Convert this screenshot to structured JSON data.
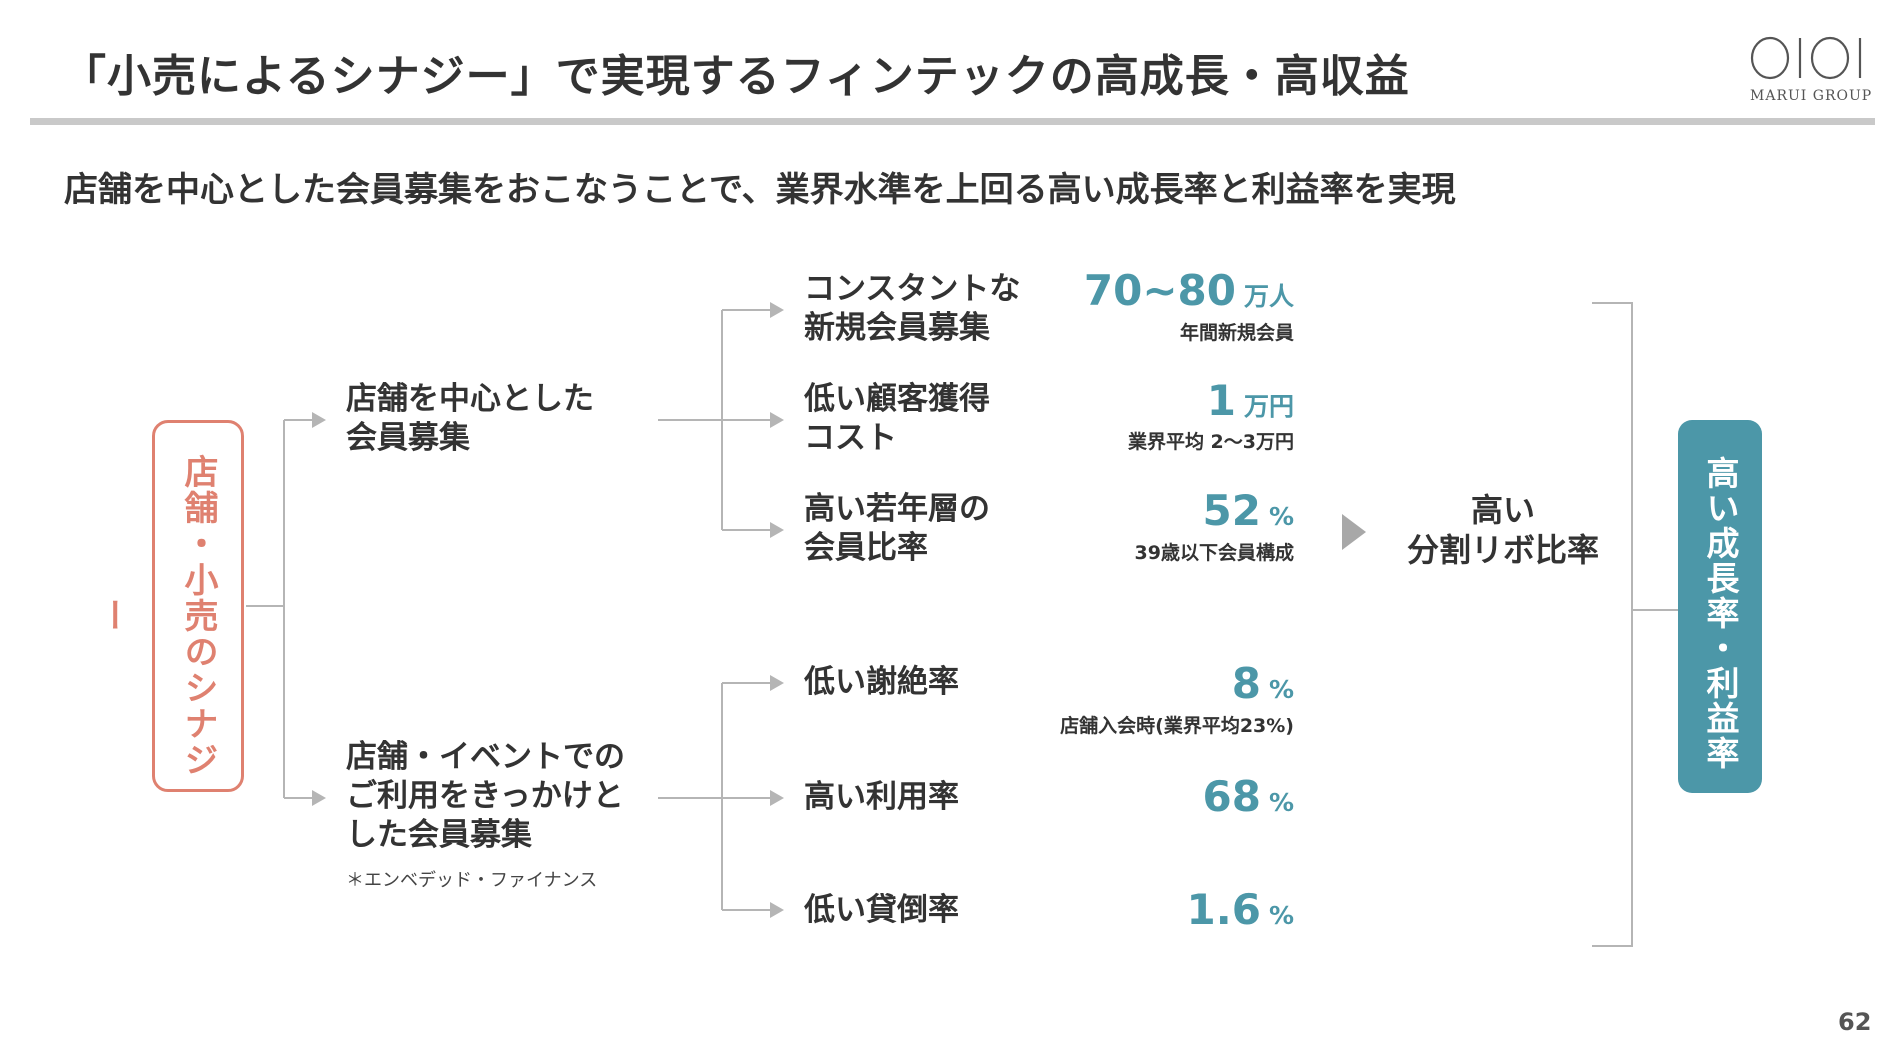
{
  "header": {
    "title": "「小売によるシナジー」で実現するフィンテックの高成長・高収益",
    "logo_text": "MARUI GROUP"
  },
  "subtitle": "店舗を中心とした会員募集をおこなうことで、業界水準を上回る高い成長率と利益率を実現",
  "left_box": {
    "label": "店舗・小売のシナジー"
  },
  "branches": {
    "store": {
      "line1": "店舗を中心とした",
      "line2": "会員募集"
    },
    "event": {
      "line1": "店舗・イベントでの",
      "line2": "ご利用をきっかけと",
      "line3": "した会員募集",
      "note": "＊エンベデッド・ファイナンス"
    }
  },
  "metrics": [
    {
      "line1": "コンスタントな",
      "line2": "新規会員募集",
      "value": "70~80",
      "unit": "万人",
      "note": "年間新規会員"
    },
    {
      "line1": "低い顧客獲得",
      "line2": "コスト",
      "value": "1",
      "unit": "万円",
      "note": "業界平均 2～3万円"
    },
    {
      "line1": "高い若年層の",
      "line2": "会員比率",
      "value": "52",
      "unit": "%",
      "note": "39歳以下会員構成"
    },
    {
      "line1": "低い謝絶率",
      "line2": "",
      "value": "8",
      "unit": "%",
      "note": "店舗入会時(業界平均23%)"
    },
    {
      "line1": "高い利用率",
      "line2": "",
      "value": "68",
      "unit": "%",
      "note": ""
    },
    {
      "line1": "低い貸倒率",
      "line2": "",
      "value": "1.6",
      "unit": "%",
      "note": ""
    }
  ],
  "revolving": {
    "line1": "高い",
    "line2": "分割リボ比率"
  },
  "right_box": {
    "label": "高い成長率・利益率"
  },
  "page_number": "62",
  "colors": {
    "accent_teal": "#4c97a8",
    "accent_coral": "#df8170",
    "rule_gray": "#c9c9c9",
    "connector_gray": "#b5b5b5"
  }
}
